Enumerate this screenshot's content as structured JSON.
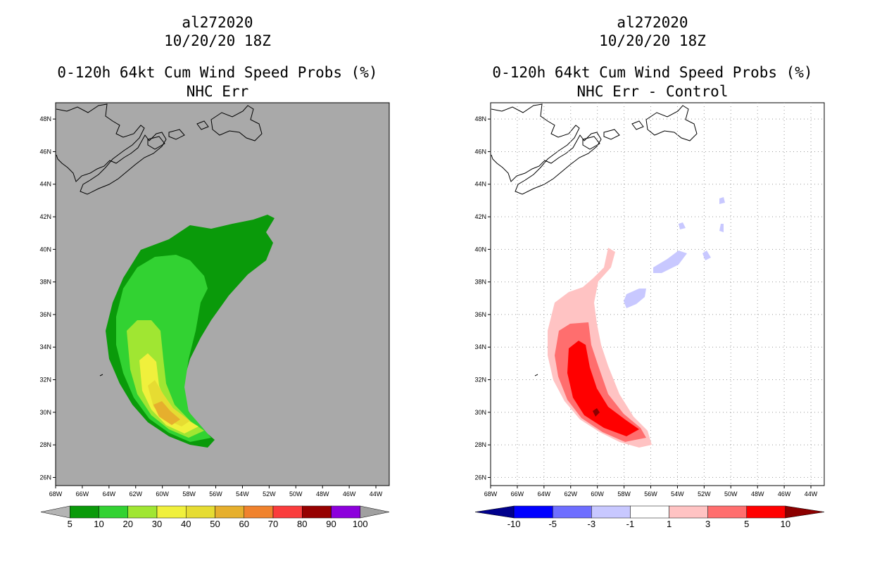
{
  "panels": [
    {
      "storm_id": "al272020",
      "datetime": "10/20/20 18Z",
      "product": "0-120h 64kt Cum Wind Speed Probs (%)",
      "subtitle": "NHC Err",
      "background": "#a9a9a9",
      "colorbar": {
        "colors": [
          "#b4b4b4",
          "#0a9a0a",
          "#32d232",
          "#a0e632",
          "#f0f03c",
          "#e6dc32",
          "#e6af2d",
          "#f0822d",
          "#fa3c3c",
          "#960000",
          "#8c00dc",
          "#a0a0a0"
        ],
        "labels": [
          "5",
          "10",
          "20",
          "30",
          "40",
          "50",
          "60",
          "70",
          "80",
          "90",
          "100"
        ]
      }
    },
    {
      "storm_id": "al272020",
      "datetime": "10/20/20 18Z",
      "product": "0-120h 64kt Cum Wind Speed Probs (%)",
      "subtitle": "NHC Err - Control",
      "background": "#ffffff",
      "colorbar": {
        "colors": [
          "#00008c",
          "#0000ff",
          "#6e6eff",
          "#c8c8ff",
          "#ffffff",
          "#ffc3c3",
          "#ff6e6e",
          "#ff0000",
          "#8c0000"
        ],
        "labels": [
          "-10",
          "-5",
          "-3",
          "-1",
          "1",
          "3",
          "5",
          "10"
        ]
      }
    }
  ],
  "axes": {
    "x_ticks": [
      "68W",
      "66W",
      "64W",
      "62W",
      "60W",
      "58W",
      "56W",
      "54W",
      "52W",
      "50W",
      "48W",
      "46W",
      "44W"
    ],
    "y_ticks": [
      "48N",
      "46N",
      "44N",
      "42N",
      "40N",
      "38N",
      "36N",
      "34N",
      "32N",
      "30N",
      "28N",
      "26N"
    ],
    "lon_range": [
      -68,
      -43
    ],
    "lat_range": [
      25.5,
      49
    ]
  }
}
